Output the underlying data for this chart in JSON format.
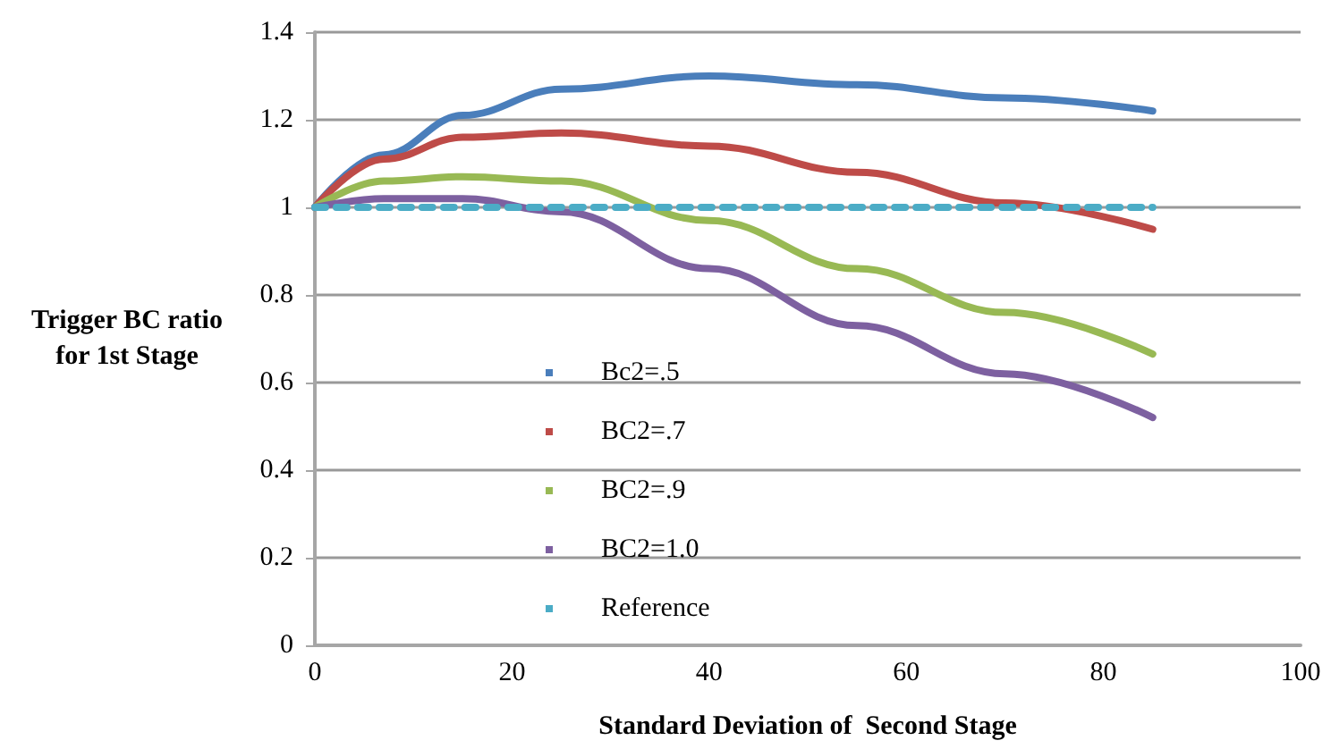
{
  "chart_data": {
    "type": "line",
    "xlabel": "Standard Deviation of  Second Stage",
    "ylabel": "Trigger BC ratio\nfor 1st Stage",
    "x": [
      0,
      7,
      15,
      25,
      40,
      55,
      70,
      85
    ],
    "series": [
      {
        "name": "Bc2=.5",
        "color": "#4a7ebb",
        "values": [
          1,
          1.12,
          1.21,
          1.27,
          1.3,
          1.28,
          1.25,
          1.22
        ]
      },
      {
        "name": "BC2=.7",
        "color": "#be4b48",
        "values": [
          1,
          1.11,
          1.16,
          1.17,
          1.14,
          1.08,
          1.01,
          0.95
        ]
      },
      {
        "name": "BC2=.9",
        "color": "#98b954",
        "values": [
          1,
          1.06,
          1.07,
          1.06,
          0.97,
          0.86,
          0.76,
          0.665
        ]
      },
      {
        "name": "BC2=1.0",
        "color": "#7d60a0",
        "values": [
          1,
          1.02,
          1.02,
          0.99,
          0.86,
          0.73,
          0.62,
          0.52
        ]
      },
      {
        "name": "Reference",
        "color": "#4bacc6",
        "x": [
          0,
          85
        ],
        "values": [
          1,
          1
        ],
        "line_style": "dashed"
      }
    ],
    "xlim": [
      0,
      100
    ],
    "xticks": [
      0,
      20,
      40,
      60,
      80,
      100
    ],
    "ylim": [
      0,
      1.4
    ],
    "yticks": [
      0,
      0.2,
      0.4,
      0.6,
      0.8,
      1,
      1.2,
      1.4
    ],
    "grid": "y",
    "legend": "bottom left",
    "marker": "none",
    "line_style": "solid"
  }
}
